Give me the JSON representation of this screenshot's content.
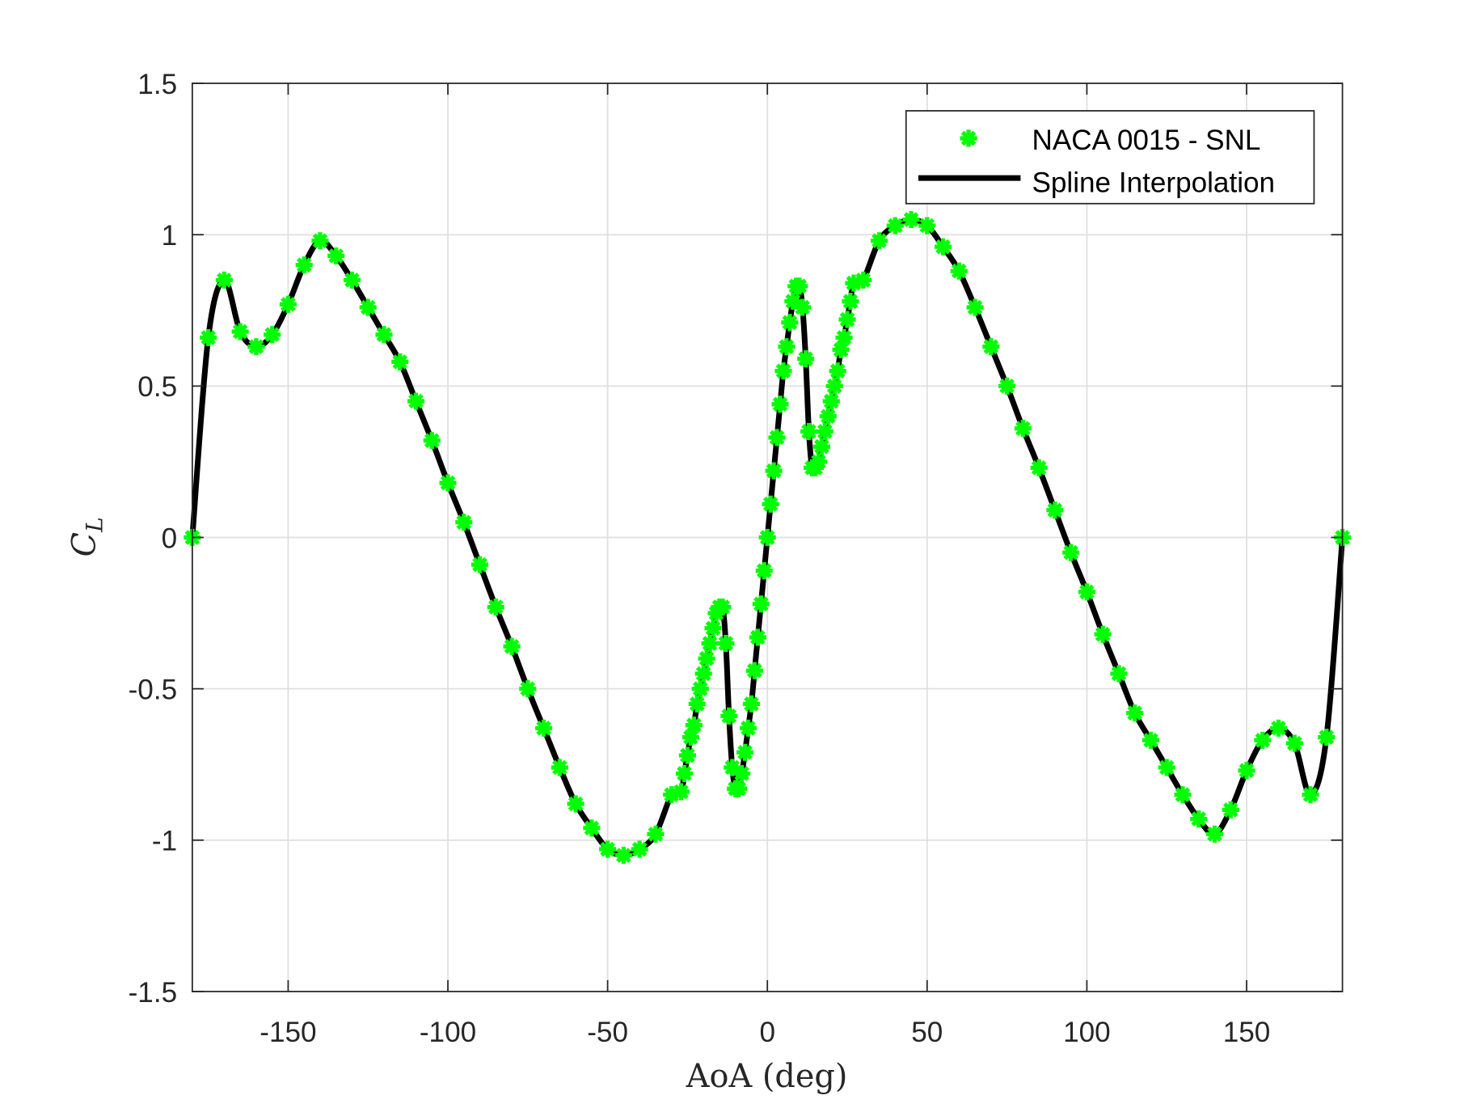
{
  "chart_data": {
    "type": "line",
    "title": "",
    "xlabel": "AoA (deg)",
    "ylabel": "C_L",
    "ylabel_main": "C",
    "ylabel_sub": "L",
    "xlim": [
      -180,
      180
    ],
    "ylim": [
      -1.5,
      1.5
    ],
    "xticks": [
      -150,
      -100,
      -50,
      0,
      50,
      100,
      150
    ],
    "xtick_labels": [
      "-150",
      "-100",
      "-50",
      "0",
      "50",
      "100",
      "150"
    ],
    "yticks": [
      -1.5,
      -1,
      -0.5,
      0,
      0.5,
      1,
      1.5
    ],
    "ytick_labels": [
      "-1.5",
      "-1",
      "-0.5",
      "0",
      "0.5",
      "1",
      "1.5"
    ],
    "grid": true,
    "legend_position": "top-right",
    "x": [
      -180,
      -175,
      -170,
      -165,
      -160,
      -155,
      -150,
      -145,
      -140,
      -135,
      -130,
      -125,
      -120,
      -115,
      -110,
      -105,
      -100,
      -95,
      -90,
      -85,
      -80,
      -75,
      -70,
      -65,
      -60,
      -55,
      -50,
      -45,
      -40,
      -35,
      -30,
      -27,
      -26,
      -25,
      -24,
      -23,
      -22,
      -21,
      -20,
      -19,
      -18,
      -17,
      -16,
      -15,
      -14,
      -13,
      -12,
      -11,
      -10,
      -9,
      -8,
      -7,
      -6,
      -5,
      -4,
      -3,
      -2,
      -1,
      0,
      1,
      2,
      3,
      4,
      5,
      6,
      7,
      8,
      9,
      10,
      11,
      12,
      13,
      14,
      15,
      16,
      17,
      18,
      19,
      20,
      21,
      22,
      23,
      24,
      25,
      26,
      27,
      30,
      35,
      40,
      45,
      50,
      55,
      60,
      65,
      70,
      75,
      80,
      85,
      90,
      95,
      100,
      105,
      110,
      115,
      120,
      125,
      130,
      135,
      140,
      145,
      150,
      155,
      160,
      165,
      170,
      175,
      180
    ],
    "series": [
      {
        "name": "NACA 0015 - SNL",
        "style": "markers",
        "marker": "asterisk",
        "color": "#00ff00",
        "y": [
          0,
          0.66,
          0.85,
          0.68,
          0.63,
          0.67,
          0.77,
          0.9,
          0.98,
          0.93,
          0.85,
          0.76,
          0.67,
          0.58,
          0.45,
          0.32,
          0.18,
          0.05,
          -0.09,
          -0.23,
          -0.36,
          -0.5,
          -0.63,
          -0.76,
          -0.88,
          -0.96,
          -1.03,
          -1.05,
          -1.03,
          -0.98,
          -0.85,
          -0.84,
          -0.78,
          -0.72,
          -0.66,
          -0.62,
          -0.55,
          -0.5,
          -0.45,
          -0.4,
          -0.35,
          -0.3,
          -0.25,
          -0.23,
          -0.23,
          -0.35,
          -0.59,
          -0.76,
          -0.83,
          -0.83,
          -0.78,
          -0.71,
          -0.63,
          -0.55,
          -0.44,
          -0.33,
          -0.22,
          -0.11,
          0,
          0.11,
          0.22,
          0.33,
          0.44,
          0.55,
          0.63,
          0.71,
          0.78,
          0.83,
          0.83,
          0.76,
          0.59,
          0.35,
          0.23,
          0.23,
          0.25,
          0.3,
          0.35,
          0.4,
          0.45,
          0.5,
          0.55,
          0.62,
          0.66,
          0.72,
          0.78,
          0.84,
          0.85,
          0.98,
          1.03,
          1.05,
          1.03,
          0.96,
          0.88,
          0.76,
          0.63,
          0.5,
          0.36,
          0.23,
          0.09,
          -0.05,
          -0.18,
          -0.32,
          -0.45,
          -0.58,
          -0.67,
          -0.76,
          -0.85,
          -0.93,
          -0.98,
          -0.9,
          -0.77,
          -0.67,
          -0.63,
          -0.68,
          -0.85,
          -0.66,
          0
        ]
      },
      {
        "name": "Spline Interpolation",
        "style": "line",
        "color": "#000000",
        "interpolates": "NACA 0015 - SNL"
      }
    ]
  },
  "colors": {
    "markers": "#00ff00",
    "line": "#000000",
    "grid": "#dfdfdf",
    "axes": "#262626"
  }
}
